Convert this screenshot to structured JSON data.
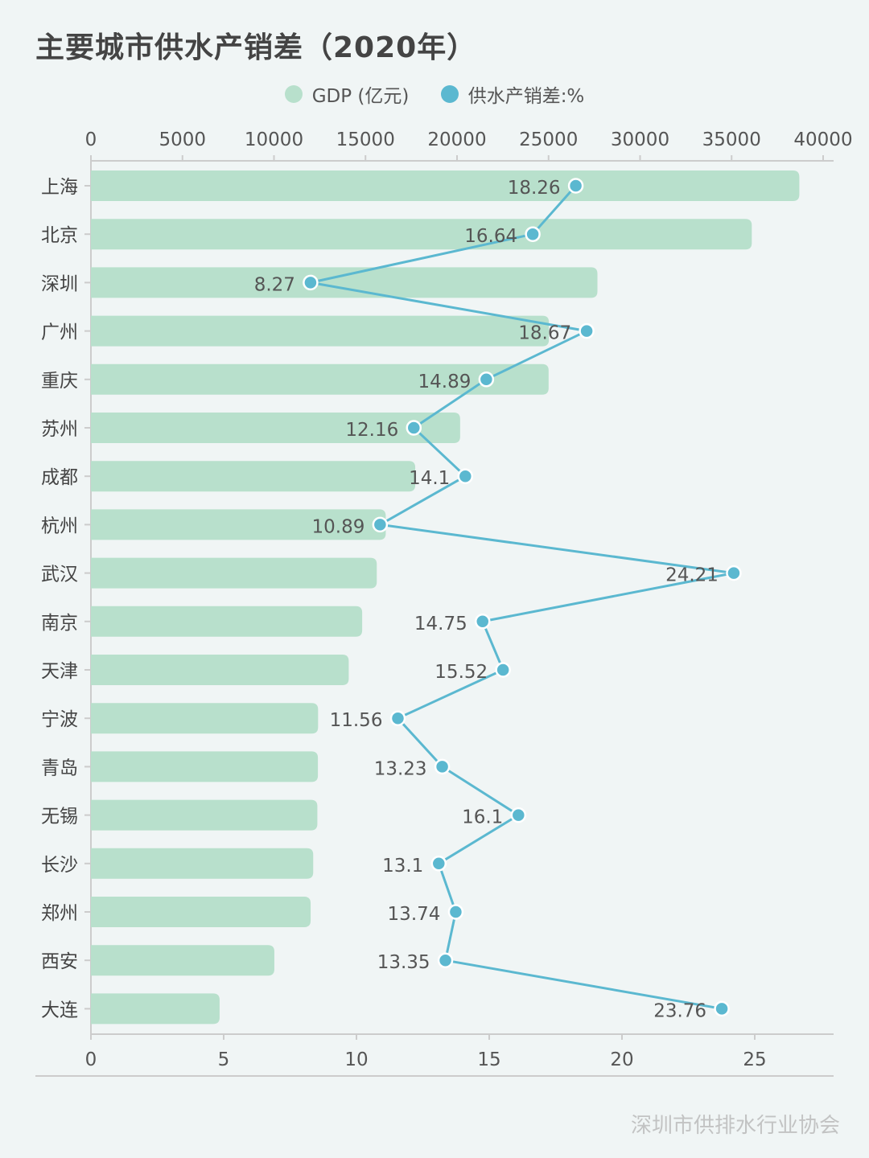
{
  "chart_data": {
    "type": "bar+line",
    "title": "主要城市供水产销差（2020年）",
    "legend_position": "top",
    "categories": [
      "上海",
      "北京",
      "深圳",
      "广州",
      "重庆",
      "苏州",
      "成都",
      "杭州",
      "武汉",
      "南京",
      "天津",
      "宁波",
      "青岛",
      "无锡",
      "长沙",
      "郑州",
      "西安",
      "大连"
    ],
    "series": [
      {
        "name": "GDP (亿元)",
        "type": "bar",
        "axis": "top",
        "color": "#b8e0cc",
        "values": [
          38700,
          36102,
          27670,
          25019,
          25003,
          20170,
          17717,
          16106,
          15616,
          14818,
          14084,
          12409,
          12400,
          12370,
          12143,
          12003,
          10020,
          7030
        ]
      },
      {
        "name": "供水产销差:%",
        "type": "line",
        "axis": "bottom",
        "color": "#5bb8d0",
        "values": [
          18.26,
          16.64,
          8.27,
          18.67,
          14.89,
          12.16,
          14.1,
          10.89,
          24.21,
          14.75,
          15.52,
          11.56,
          13.23,
          16.1,
          13.1,
          13.74,
          13.35,
          23.76
        ],
        "labels": [
          "18.26",
          "16.64",
          "8.27",
          "18.67",
          "14.89",
          "12.16",
          "14.1",
          "10.89",
          "24.21",
          "14.75",
          "15.52",
          "11.56",
          "13.23",
          "16.1",
          "13.1",
          "13.74",
          "13.35",
          "23.76"
        ]
      }
    ],
    "top_axis": {
      "range": [
        0,
        40000
      ],
      "ticks": [
        "0",
        "5000",
        "10000",
        "15000",
        "20000",
        "25000",
        "30000",
        "35000",
        "40000"
      ]
    },
    "bottom_axis": {
      "range": [
        0,
        28
      ],
      "ticks": [
        "0",
        "5",
        "10",
        "15",
        "20",
        "25"
      ]
    },
    "grid": false
  },
  "watermark": "深圳市供排水行业协会"
}
